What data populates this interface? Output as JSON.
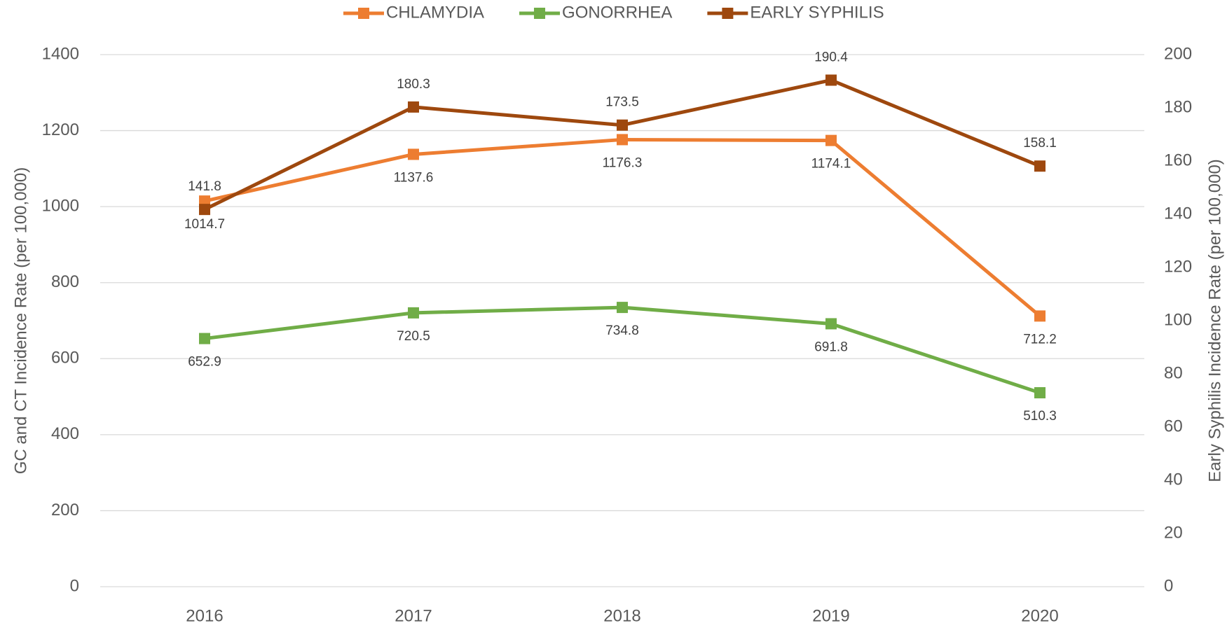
{
  "chart_data": {
    "type": "line",
    "categories": [
      "2016",
      "2017",
      "2018",
      "2019",
      "2020"
    ],
    "series": [
      {
        "name": "CHLAMYDIA",
        "color": "#ED7D31",
        "values": [
          1014.7,
          1137.6,
          1176.3,
          1174.1,
          712.2
        ]
      },
      {
        "name": "GONORRHEA",
        "color": "#70AD47",
        "values": [
          652.9,
          720.5,
          734.8,
          691.8,
          510.3
        ]
      },
      {
        "name": "EARLY SYPHILIS",
        "color": "#9E480E",
        "axis": "y2",
        "values": [
          141.8,
          180.3,
          173.5,
          190.4,
          158.1
        ]
      }
    ],
    "ylabel": "GC and CT Incidence Rate (per 100,000)",
    "y2label": "Early Syphilis Incidence Rate (per 100,000)",
    "ylim": [
      0,
      1400
    ],
    "yticks": [
      0,
      200,
      400,
      600,
      800,
      1000,
      1200,
      1400
    ],
    "y2lim": [
      0,
      200
    ],
    "y2ticks": [
      0,
      20,
      40,
      60,
      80,
      100,
      120,
      140,
      160,
      180,
      200
    ],
    "grid": true,
    "legend": "top"
  }
}
